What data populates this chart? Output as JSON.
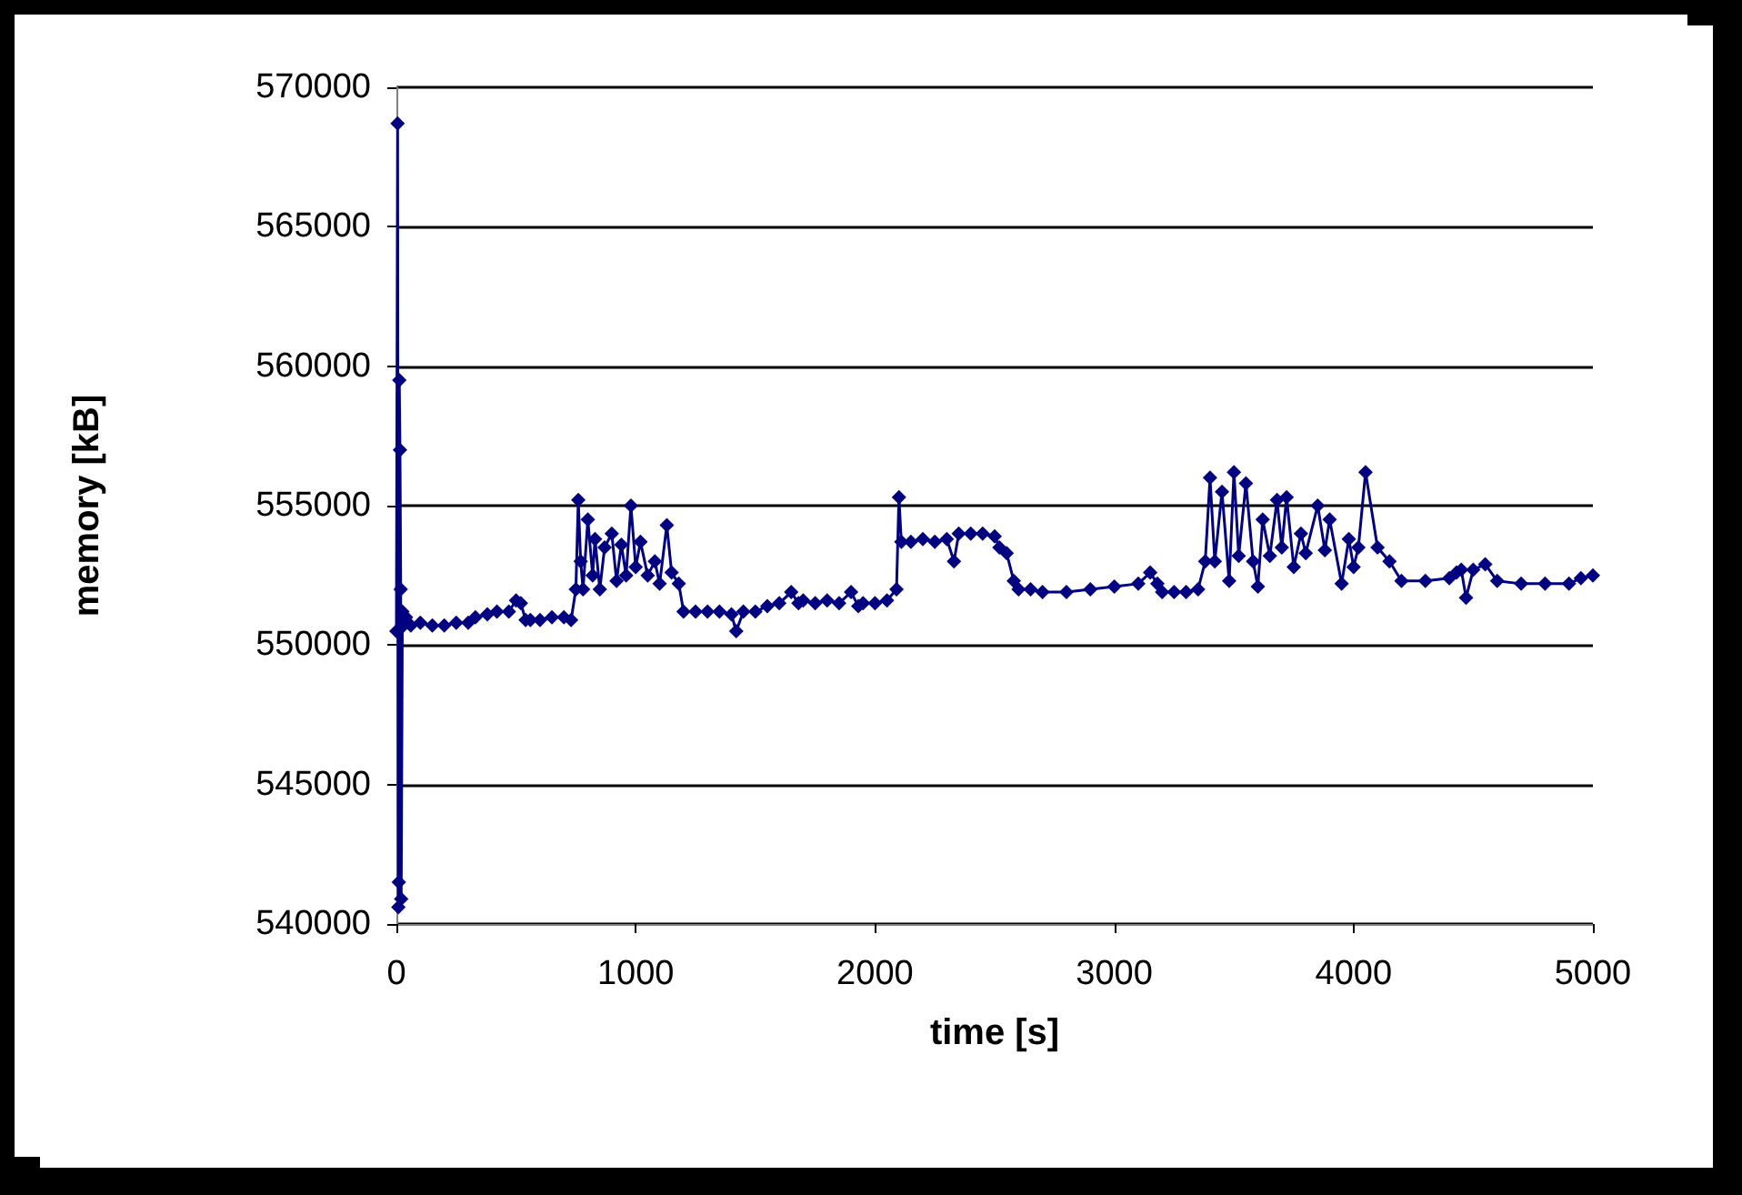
{
  "chart_data": {
    "type": "line",
    "xlabel": "time [s]",
    "ylabel": "memory [kB]",
    "xlim": [
      0,
      5000
    ],
    "xticks": [
      0,
      1000,
      2000,
      3000,
      4000,
      5000
    ],
    "ylim": [
      540000,
      570000
    ],
    "yticks": [
      540000,
      545000,
      550000,
      555000,
      560000,
      565000,
      570000
    ],
    "grid": "y",
    "marker": "diamond",
    "line_style": "solid",
    "series": [
      {
        "color": "#000080",
        "x": [
          0,
          5,
          8,
          10,
          12,
          15,
          18,
          20,
          25,
          30,
          40,
          60,
          100,
          150,
          200,
          250,
          300,
          330,
          380,
          420,
          470,
          500,
          520,
          540,
          560,
          600,
          650,
          700,
          730,
          750,
          760,
          770,
          780,
          800,
          820,
          830,
          850,
          870,
          900,
          920,
          940,
          960,
          980,
          1000,
          1020,
          1050,
          1080,
          1100,
          1130,
          1150,
          1180,
          1200,
          1250,
          1300,
          1350,
          1400,
          1420,
          1450,
          1500,
          1550,
          1600,
          1650,
          1680,
          1700,
          1750,
          1800,
          1850,
          1900,
          1930,
          1950,
          2000,
          2050,
          2090,
          2100,
          2110,
          2150,
          2200,
          2250,
          2300,
          2330,
          2350,
          2400,
          2450,
          2500,
          2520,
          2550,
          2580,
          2600,
          2650,
          2700,
          2800,
          2900,
          3000,
          3100,
          3150,
          3180,
          3200,
          3250,
          3300,
          3350,
          3380,
          3400,
          3420,
          3450,
          3480,
          3500,
          3520,
          3550,
          3580,
          3600,
          3620,
          3650,
          3680,
          3700,
          3720,
          3750,
          3780,
          3800,
          3850,
          3880,
          3900,
          3950,
          3980,
          4000,
          4020,
          4050,
          4100,
          4150,
          4200,
          4300,
          4400,
          4430,
          4450,
          4470,
          4500,
          4550,
          4600,
          4700,
          4800,
          4900,
          4950,
          5000
        ],
        "values": [
          550500,
          568700,
          540600,
          541500,
          559500,
          557000,
          552000,
          540900,
          551200,
          550700,
          551000,
          550700,
          550800,
          550700,
          550700,
          550800,
          550800,
          551000,
          551100,
          551200,
          551200,
          551600,
          551500,
          550900,
          550900,
          550900,
          551000,
          551000,
          550900,
          552000,
          555200,
          553000,
          552000,
          554500,
          552500,
          553800,
          552000,
          553500,
          554000,
          552300,
          553600,
          552500,
          555000,
          552800,
          553700,
          552500,
          553000,
          552200,
          554300,
          552600,
          552200,
          551200,
          551200,
          551200,
          551200,
          551100,
          550500,
          551200,
          551200,
          551400,
          551500,
          551900,
          551500,
          551600,
          551500,
          551600,
          551500,
          551900,
          551400,
          551500,
          551500,
          551600,
          552000,
          555300,
          553700,
          553700,
          553800,
          553700,
          553800,
          553000,
          554000,
          554000,
          554000,
          553900,
          553500,
          553300,
          552300,
          552000,
          552000,
          551900,
          551900,
          552000,
          552100,
          552200,
          552600,
          552200,
          551900,
          551900,
          551900,
          552000,
          553000,
          556000,
          553000,
          555500,
          552300,
          556200,
          553200,
          555800,
          553000,
          552100,
          554500,
          553200,
          555200,
          553500,
          555300,
          552800,
          554000,
          553300,
          555000,
          553400,
          554500,
          552200,
          553800,
          552800,
          553500,
          556200,
          553500,
          553000,
          552300,
          552300,
          552400,
          552600,
          552700,
          551700,
          552700,
          552900,
          552300,
          552200,
          552200,
          552200,
          552400,
          552500
        ]
      }
    ]
  }
}
